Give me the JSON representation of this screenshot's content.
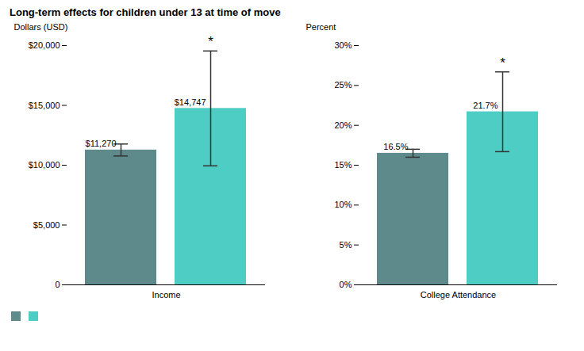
{
  "chart_data": [
    {
      "type": "bar",
      "title": "Long-term effects for children under 13 at time of move",
      "categories": [
        "Income"
      ],
      "series": [
        {
          "color": "#5f8a8b",
          "values": [
            11270
          ],
          "errors": [
            500
          ],
          "value_labels": [
            "$11,270"
          ]
        },
        {
          "color": "#4ecdc4",
          "values": [
            14747
          ],
          "errors": [
            4800
          ],
          "value_labels": [
            "$14,747"
          ],
          "annotations": [
            "*"
          ]
        }
      ],
      "ylabel": "Dollars (USD)",
      "ylim": [
        0,
        20000
      ],
      "yticks": [
        0,
        {
          "value": 5000,
          "label": "$5,000"
        },
        {
          "value": 10000,
          "label": "$10,000"
        },
        {
          "value": 15000,
          "label": "$15,000"
        },
        {
          "value": 20000,
          "label": "$20,000"
        }
      ],
      "data_labels": true,
      "legend": "lower left"
    },
    {
      "type": "bar",
      "categories": [
        "College Attendance"
      ],
      "series": [
        {
          "color": "#5f8a8b",
          "values": [
            16.5
          ],
          "errors": [
            0.5
          ],
          "value_labels": [
            "16.5%"
          ]
        },
        {
          "color": "#4ecdc4",
          "values": [
            21.7
          ],
          "errors": [
            5.0
          ],
          "value_labels": [
            "21.7%"
          ],
          "annotations": [
            "*"
          ]
        }
      ],
      "ylabel": "Percent",
      "ylim": [
        0,
        30
      ],
      "yticks": [
        {
          "value": 0,
          "label": "0%"
        },
        {
          "value": 5,
          "label": "5%"
        },
        {
          "value": 10,
          "label": "10%"
        },
        {
          "value": 15,
          "label": "15%"
        },
        {
          "value": 20,
          "label": "20%"
        },
        {
          "value": 25,
          "label": "25%"
        },
        {
          "value": 30,
          "label": "30%"
        }
      ],
      "data_labels": true
    }
  ]
}
